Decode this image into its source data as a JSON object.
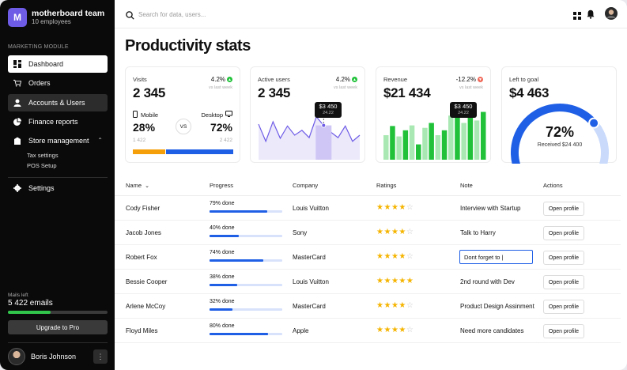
{
  "sidebar": {
    "team_initial": "M",
    "team_name": "motherboard team",
    "team_members": "10 employees",
    "module_label": "MARKETING MODULE",
    "items": [
      {
        "label": "Dashboard",
        "icon": "dashboard-icon"
      },
      {
        "label": "Orders",
        "icon": "cart-icon"
      },
      {
        "label": "Accounts & Users",
        "icon": "user-icon"
      },
      {
        "label": "Finance reports",
        "icon": "pie-chart-icon"
      },
      {
        "label": "Store management",
        "icon": "store-icon"
      }
    ],
    "sub_items": [
      "Tax settings",
      "POS Setup"
    ],
    "settings_label": "Settings",
    "mails_label": "Mails left",
    "mails_value": "5 422 emails",
    "mails_fraction": 0.43,
    "upgrade_label": "Upgrade to Pro",
    "user_name": "Boris Johnson",
    "user_menu_glyph": "⋮"
  },
  "topbar": {
    "search_placeholder": "Search for data, users..."
  },
  "page_title": "Productivity stats",
  "cards": {
    "visits": {
      "title": "Visits",
      "pct": "4.2%",
      "vs": "vs last week",
      "value": "2 345",
      "mobile_label": "Mobile",
      "mobile_pct": "28%",
      "mobile_count": "1 422",
      "desktop_label": "Desktop",
      "desktop_pct": "72%",
      "desktop_count": "2 422",
      "vs_badge": "VS"
    },
    "active_users": {
      "title": "Active users",
      "pct": "4.2%",
      "vs": "vs last week",
      "value": "2 345",
      "tooltip_value": "$3 450",
      "tooltip_sub": "24.22"
    },
    "revenue": {
      "title": "Revenue",
      "pct": "-12.2%",
      "vs": "vs last week",
      "value": "$21 434",
      "tooltip_value": "$3 450",
      "tooltip_sub": "24.22"
    },
    "goal": {
      "title": "Left to goal",
      "value": "$4 463",
      "percent": "72%",
      "percent_value": 0.72,
      "received": "Received $24 400"
    }
  },
  "colors": {
    "accent": "#1f5fe6",
    "green": "#21c23a",
    "light_green": "#a9e8b2",
    "orange": "#f59f0b",
    "purple": "#6e5ce6",
    "red": "#f06a5a"
  },
  "chart_data": [
    {
      "type": "line",
      "series": [
        {
          "values": [
            58,
            30,
            62,
            35,
            55,
            40,
            48,
            36,
            70,
            56,
            45,
            36,
            55,
            30,
            40
          ]
        }
      ]
    },
    {
      "type": "bar",
      "series": [
        {
          "values": [
            40,
            55,
            38,
            48,
            56,
            25,
            52,
            60,
            40,
            48,
            72,
            78,
            60,
            72,
            64,
            78
          ]
        }
      ]
    }
  ],
  "table": {
    "headers": {
      "name": "Name",
      "progress": "Progress",
      "company": "Company",
      "ratings": "Ratings",
      "note": "Note",
      "actions": "Actions"
    },
    "rows": [
      {
        "name": "Cody Fisher",
        "progress": "79% done",
        "progress_value": 0.79,
        "company": "Louis Vuitton",
        "rating": 4,
        "note": "Interview with Startup",
        "action": "Open profile"
      },
      {
        "name": "Jacob Jones",
        "progress": "40% done",
        "progress_value": 0.4,
        "company": "Sony",
        "rating": 4,
        "note": "Talk to Harry",
        "action": "Open profile"
      },
      {
        "name": "Robert Fox",
        "progress": "74% done",
        "progress_value": 0.74,
        "company": "MasterCard",
        "rating": 4,
        "note": "Dont forget to |",
        "note_editing": true,
        "action": "Open profile"
      },
      {
        "name": "Bessie Cooper",
        "progress": "38% done",
        "progress_value": 0.38,
        "company": "Louis Vuitton",
        "rating": 5,
        "note": "2nd round with Dev",
        "action": "Open profile"
      },
      {
        "name": "Arlene McCoy",
        "progress": "32% done",
        "progress_value": 0.32,
        "company": "MasterCard",
        "rating": 4,
        "note": "Product Design Assinment",
        "action": "Open profile"
      },
      {
        "name": "Floyd Miles",
        "progress": "80% done",
        "progress_value": 0.8,
        "company": "Apple",
        "rating": 4,
        "note": "Need more candidates",
        "action": "Open profile"
      }
    ]
  }
}
